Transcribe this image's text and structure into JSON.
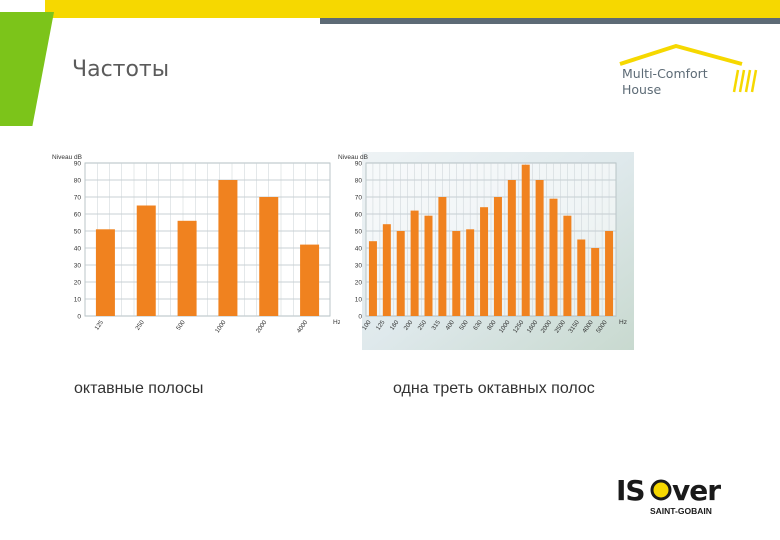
{
  "header": {
    "title": "Частоты",
    "colors": {
      "yellow": "#f6d800",
      "green": "#7cc41a",
      "grey": "#5d6b76"
    }
  },
  "logos": {
    "multi_comfort": {
      "line1": "Multi-Comfort",
      "line2": "House"
    },
    "isover": {
      "brand": "ISOVER",
      "sub": "SAINT-GOBAIN"
    }
  },
  "captions": {
    "left": "октавные полосы",
    "right": "одна треть октавных полос"
  },
  "chart_data": [
    {
      "type": "bar",
      "ylabel": "Niveau dB",
      "xunit": "Hz",
      "ylim": [
        0,
        90
      ],
      "yticks": [
        0,
        10,
        20,
        30,
        40,
        50,
        60,
        70,
        80,
        90
      ],
      "grid": true,
      "bar_color": "#f0821f",
      "categories": [
        "125",
        "250",
        "500",
        "1000",
        "2000",
        "4000"
      ],
      "values": [
        51,
        65,
        56,
        80,
        70,
        42
      ]
    },
    {
      "type": "bar",
      "ylabel": "Niveau dB",
      "xunit": "Hz",
      "ylim": [
        0,
        90
      ],
      "yticks": [
        0,
        10,
        20,
        30,
        40,
        50,
        60,
        70,
        80,
        90
      ],
      "grid": true,
      "bar_color": "#f0821f",
      "categories": [
        "100",
        "125",
        "160",
        "200",
        "250",
        "315",
        "400",
        "500",
        "630",
        "800",
        "1000",
        "1250",
        "1600",
        "2000",
        "2500",
        "3150",
        "4000",
        "5000"
      ],
      "values": [
        44,
        54,
        50,
        62,
        59,
        70,
        50,
        51,
        64,
        70,
        80,
        89,
        80,
        69,
        59,
        45,
        40,
        50
      ]
    }
  ]
}
